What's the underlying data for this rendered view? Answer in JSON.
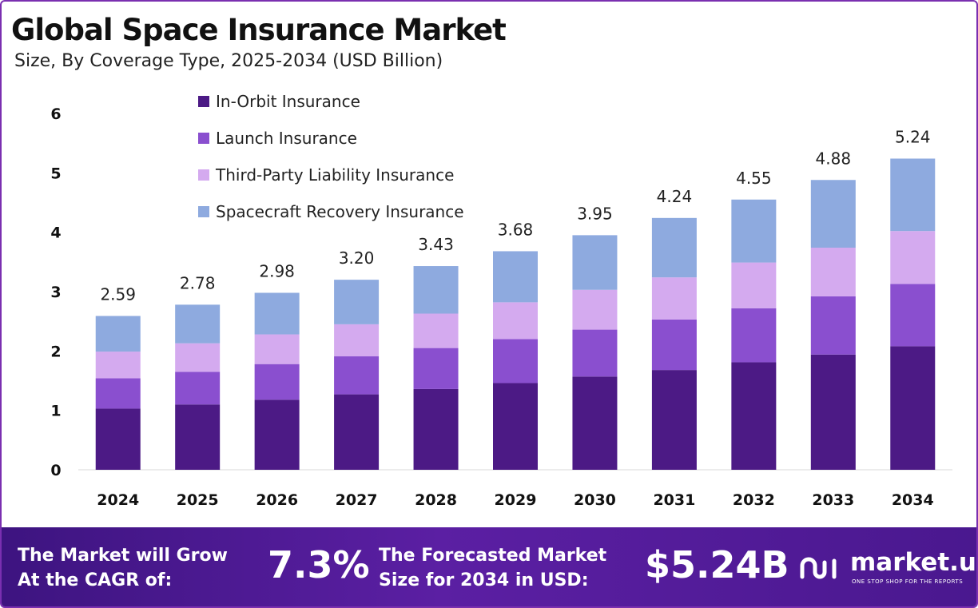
{
  "chart_data": {
    "type": "bar",
    "stacked": true,
    "title": "Global Space Insurance Market",
    "subtitle": "Size, By Coverage Type, 2025-2034 (USD Billion)",
    "categories": [
      "2024",
      "2025",
      "2026",
      "2027",
      "2028",
      "2029",
      "2030",
      "2031",
      "2032",
      "2033",
      "2034"
    ],
    "series": [
      {
        "name": "In-Orbit Insurance",
        "color": "#4c1a85",
        "values": [
          1.03,
          1.1,
          1.18,
          1.27,
          1.36,
          1.46,
          1.57,
          1.68,
          1.81,
          1.94,
          2.08
        ]
      },
      {
        "name": "Launch Insurance",
        "color": "#8a4fcf",
        "values": [
          0.51,
          0.55,
          0.6,
          0.64,
          0.69,
          0.74,
          0.79,
          0.85,
          0.91,
          0.98,
          1.05
        ]
      },
      {
        "name": "Third-Party Liability Insurance",
        "color": "#d4aaef",
        "values": [
          0.45,
          0.48,
          0.5,
          0.54,
          0.58,
          0.62,
          0.67,
          0.71,
          0.77,
          0.82,
          0.89
        ]
      },
      {
        "name": "Spacecraft Recovery Insurance",
        "color": "#8eaadf",
        "values": [
          0.6,
          0.65,
          0.7,
          0.75,
          0.8,
          0.86,
          0.92,
          1.0,
          1.06,
          1.14,
          1.22
        ]
      }
    ],
    "totals": [
      "2.59",
      "2.78",
      "2.98",
      "3.20",
      "3.43",
      "3.68",
      "3.95",
      "4.24",
      "4.55",
      "4.88",
      "5.24"
    ],
    "y_ticks": [
      "0",
      "1",
      "2",
      "3",
      "4",
      "5",
      "6"
    ],
    "ylim": [
      0,
      6
    ],
    "grid": false,
    "legend_position": "top-left"
  },
  "banner": {
    "cagr_label_1": "The Market will Grow",
    "cagr_label_2": "At the CAGR of:",
    "cagr_value": "7.3%",
    "forecast_label_1": "The Forecasted Market",
    "forecast_label_2": "Size for 2034 in USD:",
    "forecast_value": "$5.24B",
    "logo_name": "market.us",
    "logo_tagline": "ONE STOP SHOP FOR THE REPORTS"
  }
}
